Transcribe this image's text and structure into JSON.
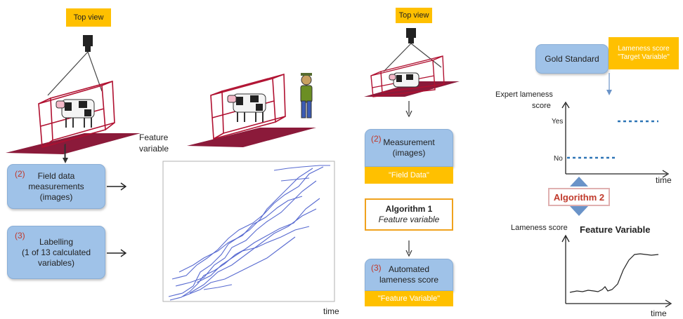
{
  "left": {
    "top_view": "Top view",
    "field_box": {
      "num": "(2)",
      "lines": [
        "Field data",
        "measurements",
        "(images)"
      ]
    },
    "label_box": {
      "num": "(3)",
      "lines": [
        "Labelling",
        "(1 of 13 calculated",
        "variables)"
      ]
    },
    "plot": {
      "ylabel": [
        "Feature",
        "variable"
      ],
      "xlabel": "time"
    }
  },
  "middle": {
    "top_view": "Top view",
    "measure_box": {
      "num": "(2)",
      "lines": [
        "Measurement",
        "(images)"
      ],
      "tag": "\"Field Data\""
    },
    "algorithm1": {
      "title": "Algorithm 1",
      "subtitle": "Feature variable"
    },
    "auto_box": {
      "num": "(3)",
      "lines": [
        "Automated",
        "lameness score"
      ],
      "tag": "\"Feature Variable\""
    }
  },
  "right": {
    "gold_standard": "Gold Standard",
    "target_box": [
      "Lameness score",
      "\"Target Variable\""
    ],
    "top_chart": {
      "ylabel": [
        "Expert lameness",
        "score"
      ],
      "yes": "Yes",
      "no": "No",
      "xlabel": "time"
    },
    "algorithm2": "Algorithm 2",
    "bottom_chart": {
      "ylabel": "Lameness score",
      "title": "Feature Variable",
      "xlabel": "time"
    }
  },
  "colors": {
    "accent_orange": "#ffc000",
    "box_blue": "#9fc2e8",
    "dark_red": "#8b1a3a",
    "algo_red": "#c0392b",
    "data_blue": "#3a50c8"
  }
}
